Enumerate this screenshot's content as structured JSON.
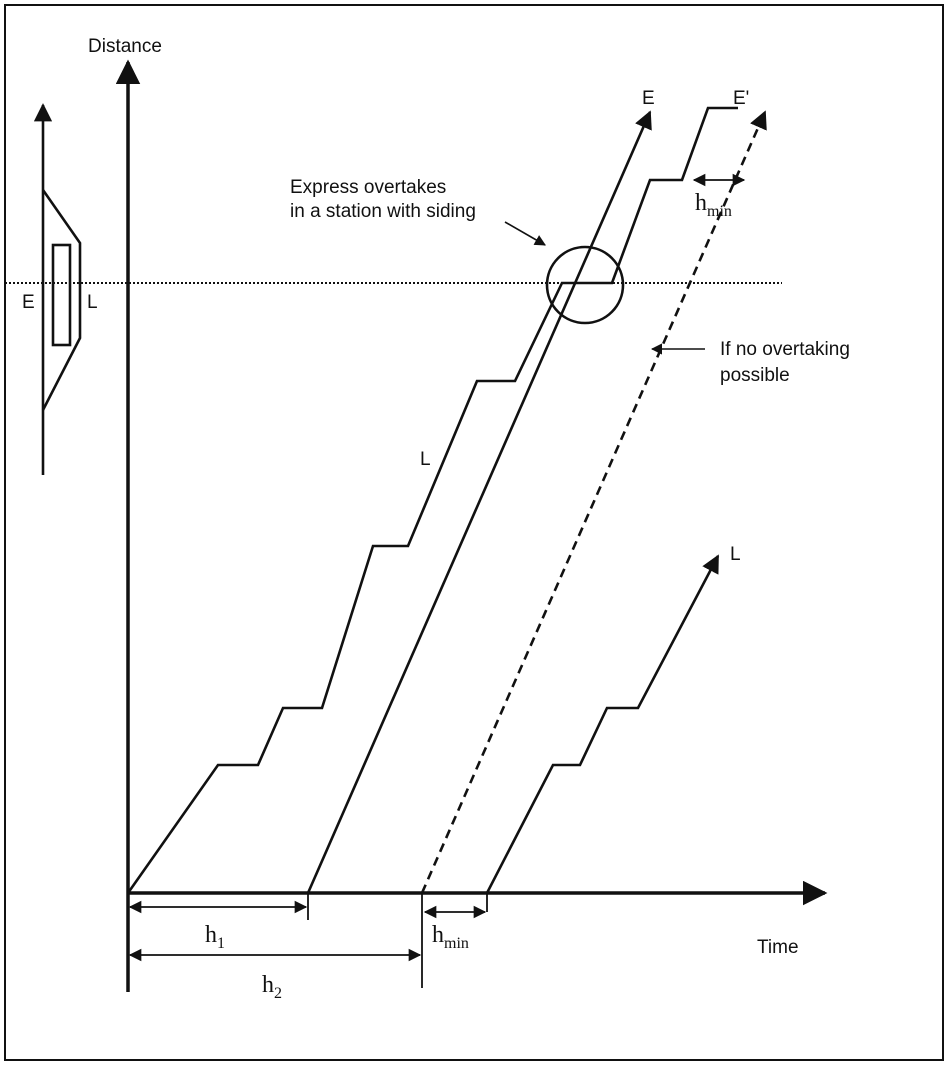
{
  "axes": {
    "y_label": "Distance",
    "x_label": "Time"
  },
  "station": {
    "left": "E",
    "right": "L"
  },
  "trains": {
    "express": "E",
    "express_delayed": "E'",
    "local_1": "L",
    "local_2": "L"
  },
  "annotations": {
    "overtake": [
      "Express overtakes",
      "in a station with siding"
    ],
    "no_overtake": [
      "If no overtaking",
      "possible"
    ]
  },
  "headways": {
    "h_min_top": {
      "base": "h",
      "sub": "min"
    },
    "h1": {
      "base": "h",
      "sub": "1"
    },
    "h2": {
      "base": "h",
      "sub": "2"
    },
    "h_min_bottom": {
      "base": "h",
      "sub": "min"
    }
  }
}
